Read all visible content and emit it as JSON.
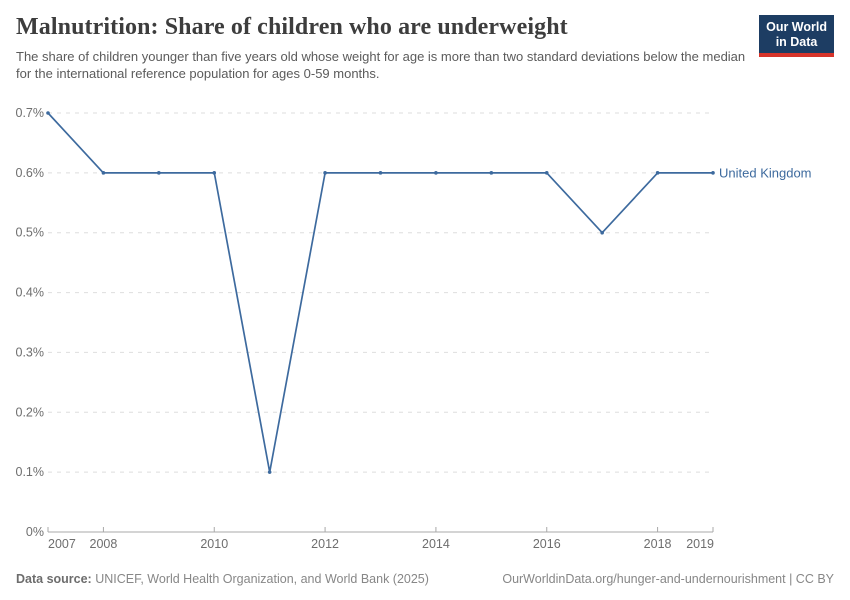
{
  "header": {
    "title": "Malnutrition: Share of children who are underweight",
    "subtitle": "The share of children younger than five years old whose weight for age is more than two standard deviations below the median for the international reference population for ages 0-59 months.",
    "logo": {
      "line1": "Our World",
      "line2": "in Data",
      "bg_color": "#1d3d63",
      "stripe_color": "#d7342a"
    }
  },
  "chart_data": {
    "type": "line",
    "title": "Malnutrition: Share of children who are underweight",
    "x": [
      2007,
      2008,
      2009,
      2010,
      2011,
      2012,
      2013,
      2014,
      2015,
      2016,
      2017,
      2018,
      2019
    ],
    "series": [
      {
        "name": "United Kingdom",
        "color": "#3d6a9e",
        "values": [
          0.7,
          0.6,
          0.6,
          0.6,
          0.1,
          0.6,
          0.6,
          0.6,
          0.6,
          0.6,
          0.5,
          0.6,
          0.6
        ]
      }
    ],
    "xlabel": "",
    "ylabel": "",
    "ylim": [
      0,
      0.7
    ],
    "yticks": [
      {
        "value": 0.0,
        "label": "0%"
      },
      {
        "value": 0.1,
        "label": "0.1%"
      },
      {
        "value": 0.2,
        "label": "0.2%"
      },
      {
        "value": 0.3,
        "label": "0.3%"
      },
      {
        "value": 0.4,
        "label": "0.4%"
      },
      {
        "value": 0.5,
        "label": "0.5%"
      },
      {
        "value": 0.6,
        "label": "0.6%"
      },
      {
        "value": 0.7,
        "label": "0.7%"
      }
    ],
    "xticks": [
      2007,
      2008,
      2010,
      2012,
      2014,
      2016,
      2018,
      2019
    ],
    "grid": "horizontal-dashed",
    "legend_position": "end-of-line",
    "colors": {
      "gridline": "#dedede",
      "axis": "#a8a8a8",
      "tick_label": "#6e6e6e"
    }
  },
  "footer": {
    "datasource_label": "Data source:",
    "datasource_text": " UNICEF, World Health Organization, and World Bank (2025)",
    "attribution": "OurWorldinData.org/hunger-and-undernourishment | CC BY"
  }
}
